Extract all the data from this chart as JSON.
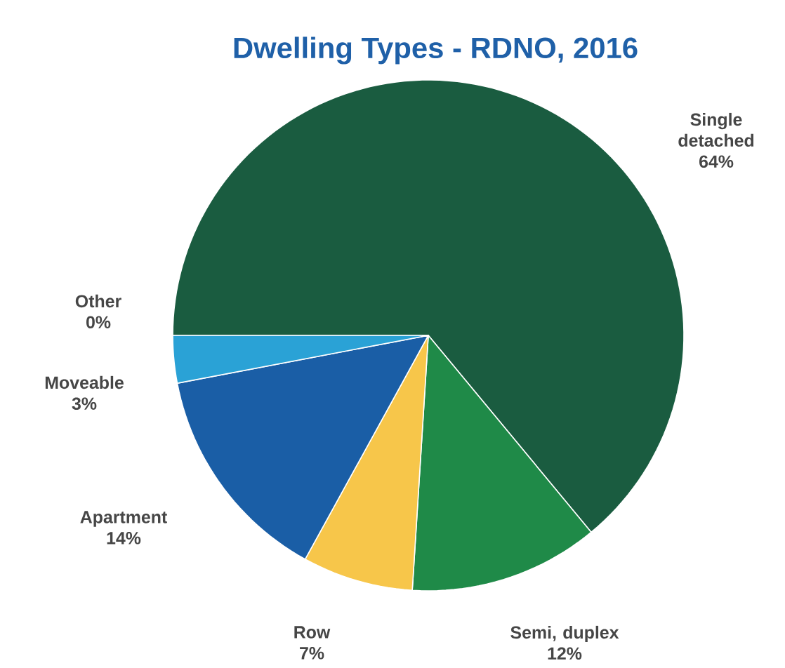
{
  "chart_data": {
    "type": "pie",
    "title": "Dwelling Types - RDNO, 2016",
    "categories": [
      "Single detached",
      "Semi, duplex",
      "Row",
      "Apartment",
      "Moveable",
      "Other"
    ],
    "values": [
      64,
      12,
      7,
      14,
      3,
      0
    ],
    "value_labels": [
      "64%",
      "12%",
      "7%",
      "14%",
      "3%",
      "0%"
    ],
    "colors": [
      "#1a5c40",
      "#1f8a48",
      "#f7c64a",
      "#1a5ea6",
      "#2aa2d6",
      "#e8e8e8"
    ],
    "legend": false
  }
}
